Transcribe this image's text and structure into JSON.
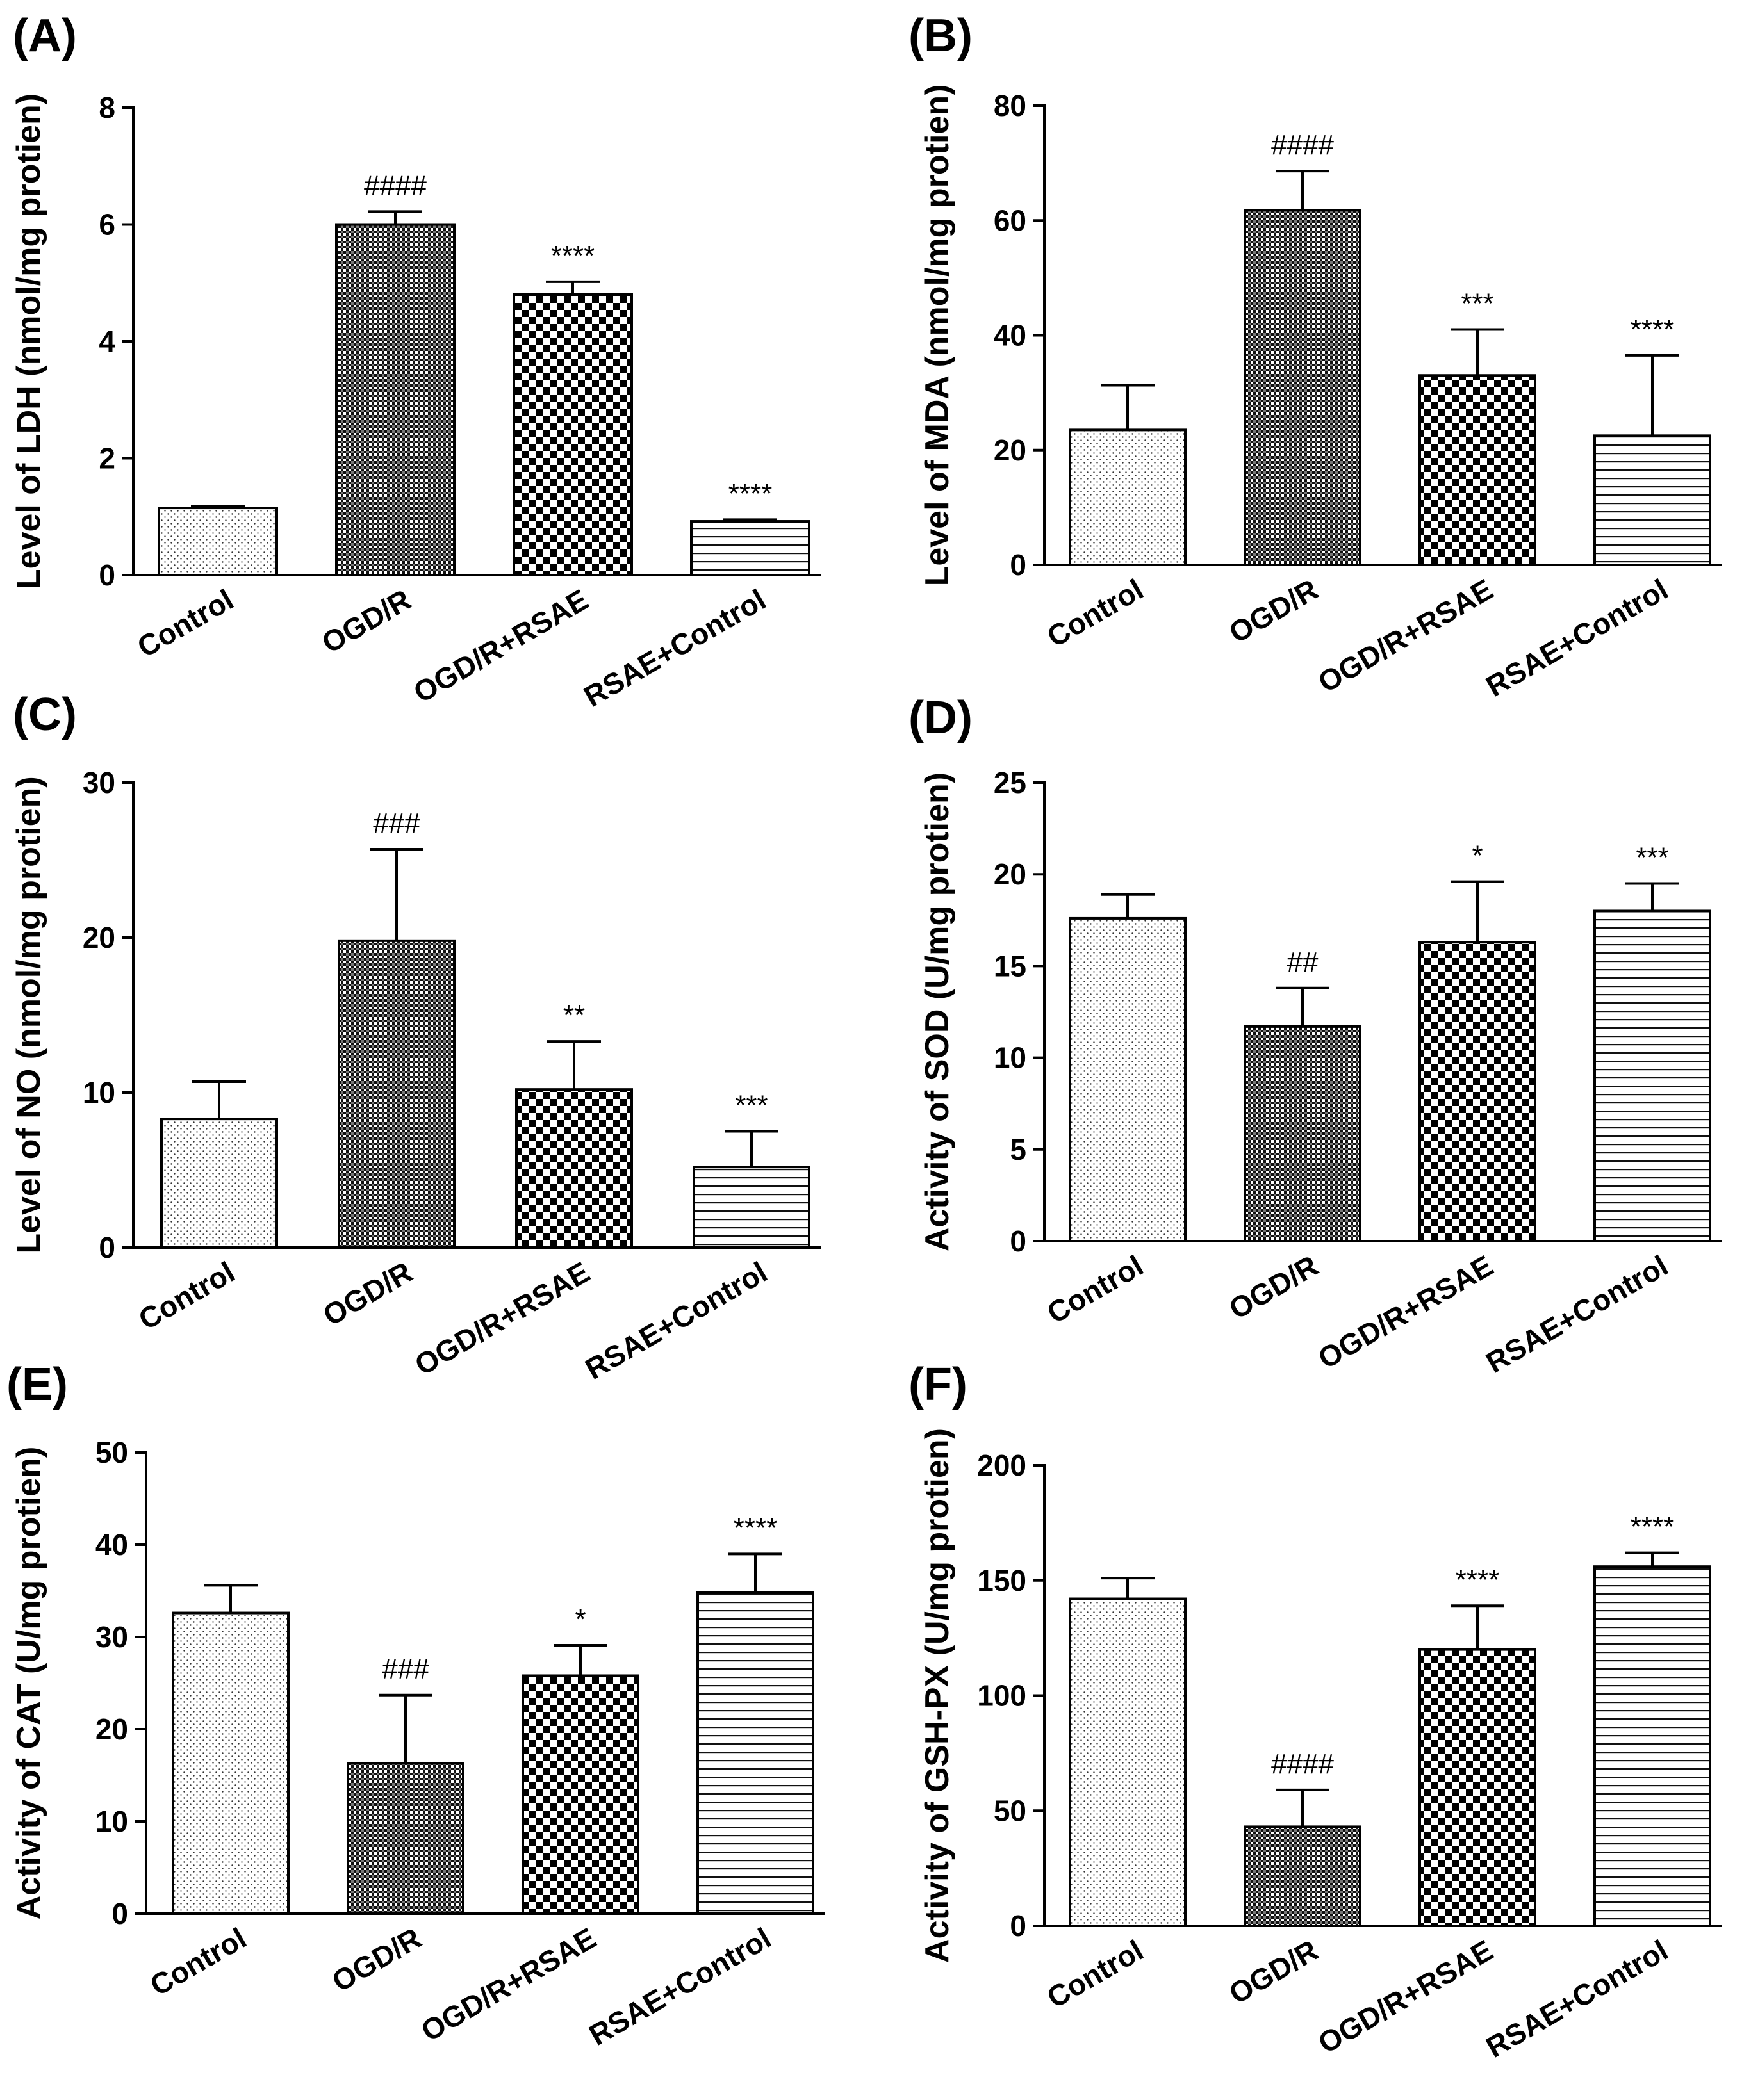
{
  "chart_data": [
    {
      "panel": "(A)",
      "type": "bar",
      "ylabel": "Level of LDH (nmol/mg protien)",
      "ylim": [
        0,
        8
      ],
      "yticks": [
        0,
        2,
        4,
        6,
        8
      ],
      "categories": [
        "Control",
        "OGD/R",
        "OGD/R+RSAE",
        "RSAE+Control"
      ],
      "values": [
        1.15,
        6.0,
        4.8,
        0.92
      ],
      "errors": [
        0.03,
        0.22,
        0.22,
        0.03
      ],
      "annotations": [
        "",
        "####",
        "****",
        "****"
      ]
    },
    {
      "panel": "(B)",
      "type": "bar",
      "ylabel": "Level of MDA (nmol/mg protien)",
      "ylim": [
        0,
        80
      ],
      "yticks": [
        0,
        20,
        40,
        60,
        80
      ],
      "categories": [
        "Control",
        "OGD/R",
        "OGD/R+RSAE",
        "RSAE+Control"
      ],
      "values": [
        23.5,
        61.8,
        33.0,
        22.5
      ],
      "errors": [
        7.8,
        6.8,
        8.0,
        14.0
      ],
      "annotations": [
        "",
        "####",
        "***",
        "****"
      ]
    },
    {
      "panel": "(C)",
      "type": "bar",
      "ylabel": "Level of NO (nmol/mg protien)",
      "ylim": [
        0,
        30
      ],
      "yticks": [
        0,
        10,
        20,
        30
      ],
      "categories": [
        "Control",
        "OGD/R",
        "OGD/R+RSAE",
        "RSAE+Control"
      ],
      "values": [
        8.3,
        19.8,
        10.2,
        5.2
      ],
      "errors": [
        2.4,
        5.9,
        3.1,
        2.3
      ],
      "annotations": [
        "",
        "###",
        "**",
        "***"
      ]
    },
    {
      "panel": "(D)",
      "type": "bar",
      "ylabel": "Activity of SOD (U/mg protien)",
      "ylim": [
        0,
        25
      ],
      "yticks": [
        0,
        5,
        10,
        15,
        20,
        25
      ],
      "categories": [
        "Control",
        "OGD/R",
        "OGD/R+RSAE",
        "RSAE+Control"
      ],
      "values": [
        17.6,
        11.7,
        16.3,
        18.0
      ],
      "errors": [
        1.3,
        2.1,
        3.3,
        1.5
      ],
      "annotations": [
        "",
        "##",
        "*",
        "***"
      ]
    },
    {
      "panel": "(E)",
      "type": "bar",
      "ylabel": "Activity of CAT (U/mg protien)",
      "ylim": [
        0,
        50
      ],
      "yticks": [
        0,
        10,
        20,
        30,
        40,
        50
      ],
      "categories": [
        "Control",
        "OGD/R",
        "OGD/R+RSAE",
        "RSAE+Control"
      ],
      "values": [
        32.6,
        16.3,
        25.8,
        34.8
      ],
      "errors": [
        3.0,
        7.4,
        3.3,
        4.2
      ],
      "annotations": [
        "",
        "###",
        "*",
        "****"
      ]
    },
    {
      "panel": "(F)",
      "type": "bar",
      "ylabel": "Activity of GSH-PX (U/mg protien)",
      "ylim": [
        0,
        200
      ],
      "yticks": [
        0,
        50,
        100,
        150,
        200
      ],
      "categories": [
        "Control",
        "OGD/R",
        "OGD/R+RSAE",
        "RSAE+Control"
      ],
      "values": [
        142,
        43,
        120,
        156
      ],
      "errors": [
        9,
        16,
        19,
        6
      ],
      "annotations": [
        "",
        "####",
        "****",
        "****"
      ]
    }
  ]
}
